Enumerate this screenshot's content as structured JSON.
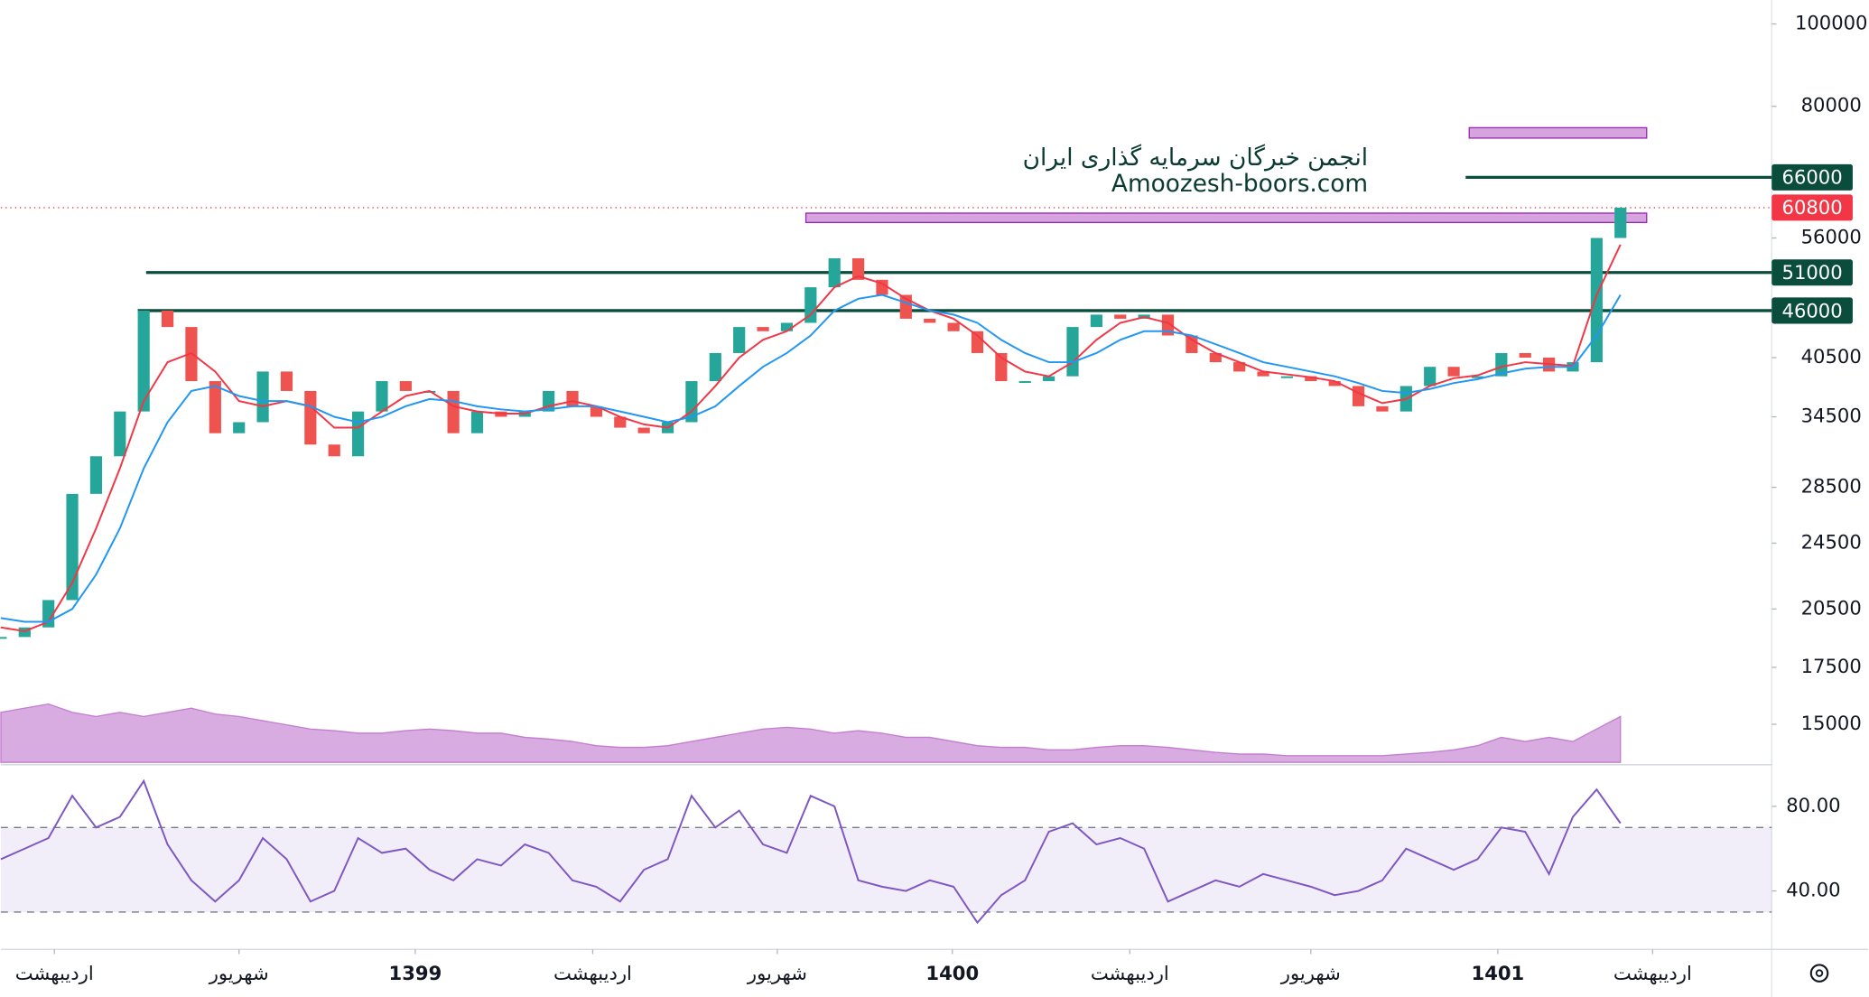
{
  "watermark": {
    "title": "انجمن خبرگان سرمایه گذاری ایران",
    "subtitle": "Amoozesh-boors.com"
  },
  "chart_data": {
    "type": "candlestick",
    "x": [
      0,
      20,
      40,
      60,
      80,
      100,
      120,
      140,
      160,
      180,
      200,
      220,
      240,
      260,
      280,
      300,
      320,
      340,
      360,
      380,
      400,
      420,
      440,
      460,
      480,
      500,
      520,
      540,
      560,
      580,
      600,
      620,
      640,
      660,
      680,
      700,
      720,
      740,
      760,
      780,
      800,
      820,
      840,
      860,
      880,
      900,
      920,
      940,
      960,
      980,
      1000,
      1020,
      1040,
      1060,
      1080,
      1100,
      1120,
      1140,
      1160,
      1180,
      1200,
      1220,
      1240,
      1260,
      1280,
      1300,
      1320,
      1340,
      1360
    ],
    "values": [
      19000,
      19500,
      21000,
      28000,
      31000,
      35000,
      46000,
      44000,
      38000,
      33000,
      34000,
      39000,
      37000,
      32000,
      31000,
      35000,
      38000,
      37000,
      37000,
      33000,
      35000,
      34500,
      35000,
      37000,
      35500,
      34500,
      33500,
      33000,
      34000,
      38000,
      41000,
      44000,
      43500,
      44500,
      49000,
      53000,
      50000,
      48000,
      45000,
      44500,
      43500,
      41000,
      38000,
      38000,
      38500,
      44000,
      45500,
      45000,
      45500,
      43000,
      41000,
      40000,
      39000,
      38500,
      38500,
      38000,
      37500,
      35500,
      35000,
      37500,
      39500,
      38500,
      38500,
      41000,
      40500,
      39000,
      40000,
      56000,
      60800
    ],
    "color_up": "#26a69a",
    "color_down": "#ef5350",
    "ma": [
      {
        "color": "#f23645",
        "values": [
          19500,
          19300,
          19800,
          22000,
          25500,
          30000,
          36000,
          40000,
          41000,
          39000,
          36000,
          35500,
          36000,
          35500,
          33500,
          33500,
          35000,
          36500,
          37000,
          35500,
          35000,
          34800,
          34800,
          35500,
          36000,
          35500,
          34500,
          33800,
          33500,
          35000,
          37500,
          40500,
          42500,
          43500,
          45500,
          49000,
          50500,
          49500,
          47500,
          46000,
          45000,
          43000,
          40500,
          39000,
          38500,
          40000,
          42500,
          44500,
          45200,
          44500,
          42500,
          41000,
          40000,
          39000,
          38700,
          38400,
          38000,
          36800,
          35800,
          36200,
          37500,
          38300,
          38600,
          39500,
          40000,
          39800,
          39600,
          48000,
          55000
        ]
      },
      {
        "color": "#2196f3",
        "values": [
          20000,
          19800,
          19800,
          20500,
          22500,
          25500,
          30000,
          34000,
          37000,
          37500,
          36500,
          36000,
          36000,
          35500,
          34500,
          34000,
          34500,
          35500,
          36200,
          36000,
          35500,
          35200,
          35000,
          35200,
          35500,
          35500,
          35000,
          34500,
          34000,
          34500,
          35500,
          37500,
          39500,
          41000,
          43000,
          46000,
          47500,
          48000,
          47000,
          46000,
          45500,
          44500,
          42500,
          41000,
          40000,
          40000,
          41000,
          42500,
          43500,
          43500,
          43000,
          42000,
          41000,
          40000,
          39500,
          39000,
          38500,
          37800,
          37000,
          36800,
          37200,
          37800,
          38200,
          38800,
          39300,
          39500,
          39500,
          43000,
          48000
        ]
      }
    ],
    "volume": [
      60,
      65,
      70,
      60,
      55,
      60,
      55,
      60,
      65,
      58,
      55,
      50,
      45,
      40,
      38,
      35,
      35,
      38,
      40,
      38,
      35,
      35,
      30,
      28,
      25,
      20,
      18,
      18,
      20,
      25,
      30,
      35,
      40,
      42,
      40,
      35,
      38,
      35,
      30,
      30,
      25,
      20,
      18,
      18,
      15,
      15,
      18,
      20,
      20,
      18,
      15,
      12,
      10,
      10,
      8,
      8,
      8,
      8,
      8,
      10,
      12,
      15,
      20,
      30,
      25,
      30,
      25,
      40,
      55
    ],
    "volume_lim": [
      0,
      100
    ],
    "volume_color": "#ba68c8",
    "log_scale": true,
    "xlim": [
      0,
      1485
    ],
    "ylim": [
      13530,
      106700
    ],
    "yticks": [
      15000,
      17500,
      20500,
      24500,
      28500,
      34500,
      40500,
      56000,
      80000,
      100000
    ],
    "xticks": [
      {
        "value": 45,
        "label": "اردیبهشت"
      },
      {
        "value": 200,
        "label": "شهریور"
      },
      {
        "value": 348,
        "label": "1399"
      },
      {
        "value": 497,
        "label": "اردیبهشت"
      },
      {
        "value": 652,
        "label": "شهریور"
      },
      {
        "value": 799,
        "label": "1400"
      },
      {
        "value": 948,
        "label": "اردیبهشت"
      },
      {
        "value": 1100,
        "label": "شهریور"
      },
      {
        "value": 1257,
        "label": "1401"
      },
      {
        "value": 1387,
        "label": "اردیبهشت"
      }
    ],
    "levels": [
      {
        "value": 66000,
        "from": 1230,
        "color": "#0b4d3c"
      },
      {
        "value": 51000,
        "from": 122,
        "color": "#0b4d3c"
      },
      {
        "value": 46000,
        "from": 115,
        "color": "#0b4d3c"
      }
    ],
    "last_price": {
      "value": 60800,
      "color": "#f23645"
    },
    "zones": [
      {
        "xlim": [
          676,
          1382
        ],
        "ylim": [
          58400,
          59900
        ],
        "color": "#ce93d8"
      },
      {
        "xlim": [
          1233,
          1382
        ],
        "ylim": [
          73400,
          75500
        ],
        "color": "#ce93d8"
      }
    ],
    "rsi": {
      "color": "#7e57c2",
      "values": [
        55,
        60,
        65,
        85,
        70,
        75,
        92,
        62,
        45,
        35,
        45,
        65,
        55,
        35,
        40,
        65,
        58,
        60,
        50,
        45,
        55,
        52,
        62,
        58,
        45,
        42,
        35,
        50,
        55,
        85,
        70,
        78,
        62,
        58,
        85,
        80,
        45,
        42,
        40,
        45,
        42,
        25,
        38,
        45,
        68,
        72,
        62,
        65,
        60,
        35,
        40,
        45,
        42,
        48,
        45,
        42,
        38,
        40,
        45,
        60,
        55,
        50,
        55,
        70,
        68,
        48,
        75,
        88,
        72
      ],
      "ylim": [
        13.5,
        98
      ],
      "yticks": [
        {
          "value": 80,
          "label": "80.00"
        },
        {
          "value": 40,
          "label": "40.00"
        }
      ],
      "bands": [
        30,
        70
      ]
    }
  }
}
